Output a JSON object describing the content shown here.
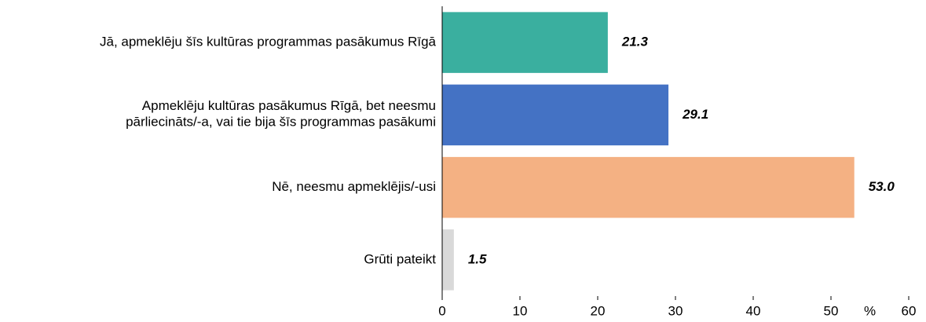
{
  "chart_data": {
    "type": "bar",
    "orientation": "horizontal",
    "categories": [
      "Jā, apmeklēju šīs kultūras programmas pasākumus Rīgā",
      "Apmeklēju kultūras pasākumus Rīgā, bet neesmu\npārliecināts/-a, vai tie bija šīs programmas pasākumi",
      "Nē, neesmu apmeklējis/-usi",
      "Grūti pateikt"
    ],
    "values": [
      21.3,
      29.1,
      53.0,
      1.5
    ],
    "value_labels": [
      "21.3",
      "29.1",
      "53.0",
      "1.5"
    ],
    "colors": [
      "#3aaf9f",
      "#4472c4",
      "#f4b183",
      "#d9d9d9"
    ],
    "x_label": "%",
    "xlim": [
      0,
      60
    ],
    "xticks": [
      0,
      10,
      20,
      30,
      40,
      50,
      60
    ],
    "grid": false
  }
}
